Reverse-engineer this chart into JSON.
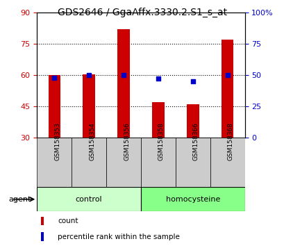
{
  "title": "GDS2646 / GgaAffx.3330.2.S1_s_at",
  "samples": [
    "GSM158353",
    "GSM158354",
    "GSM158356",
    "GSM158358",
    "GSM158366",
    "GSM158368"
  ],
  "count_values": [
    60.0,
    60.2,
    82.0,
    47.0,
    46.0,
    77.0
  ],
  "percentile_values": [
    48,
    50,
    50,
    47,
    45,
    50
  ],
  "bar_bottom": 30,
  "left_ylim": [
    30,
    90
  ],
  "right_ylim": [
    0,
    100
  ],
  "left_yticks": [
    30,
    45,
    60,
    75,
    90
  ],
  "right_yticks": [
    0,
    25,
    50,
    75,
    100
  ],
  "right_yticklabels": [
    "0",
    "25",
    "50",
    "75",
    "100%"
  ],
  "left_axis_color": "#cc0000",
  "right_axis_color": "#0000cc",
  "bar_color": "#cc0000",
  "dot_color": "#0000cc",
  "groups": [
    {
      "label": "control",
      "indices": [
        0,
        1,
        2
      ],
      "color": "#ccffcc"
    },
    {
      "label": "homocysteine",
      "indices": [
        3,
        4,
        5
      ],
      "color": "#88ff88"
    }
  ],
  "agent_label": "agent",
  "legend_count": "count",
  "legend_percentile": "percentile rank within the sample",
  "background_color": "#ffffff",
  "tick_label_area_color": "#cccccc",
  "figsize": [
    4.1,
    3.54
  ],
  "dpi": 100
}
